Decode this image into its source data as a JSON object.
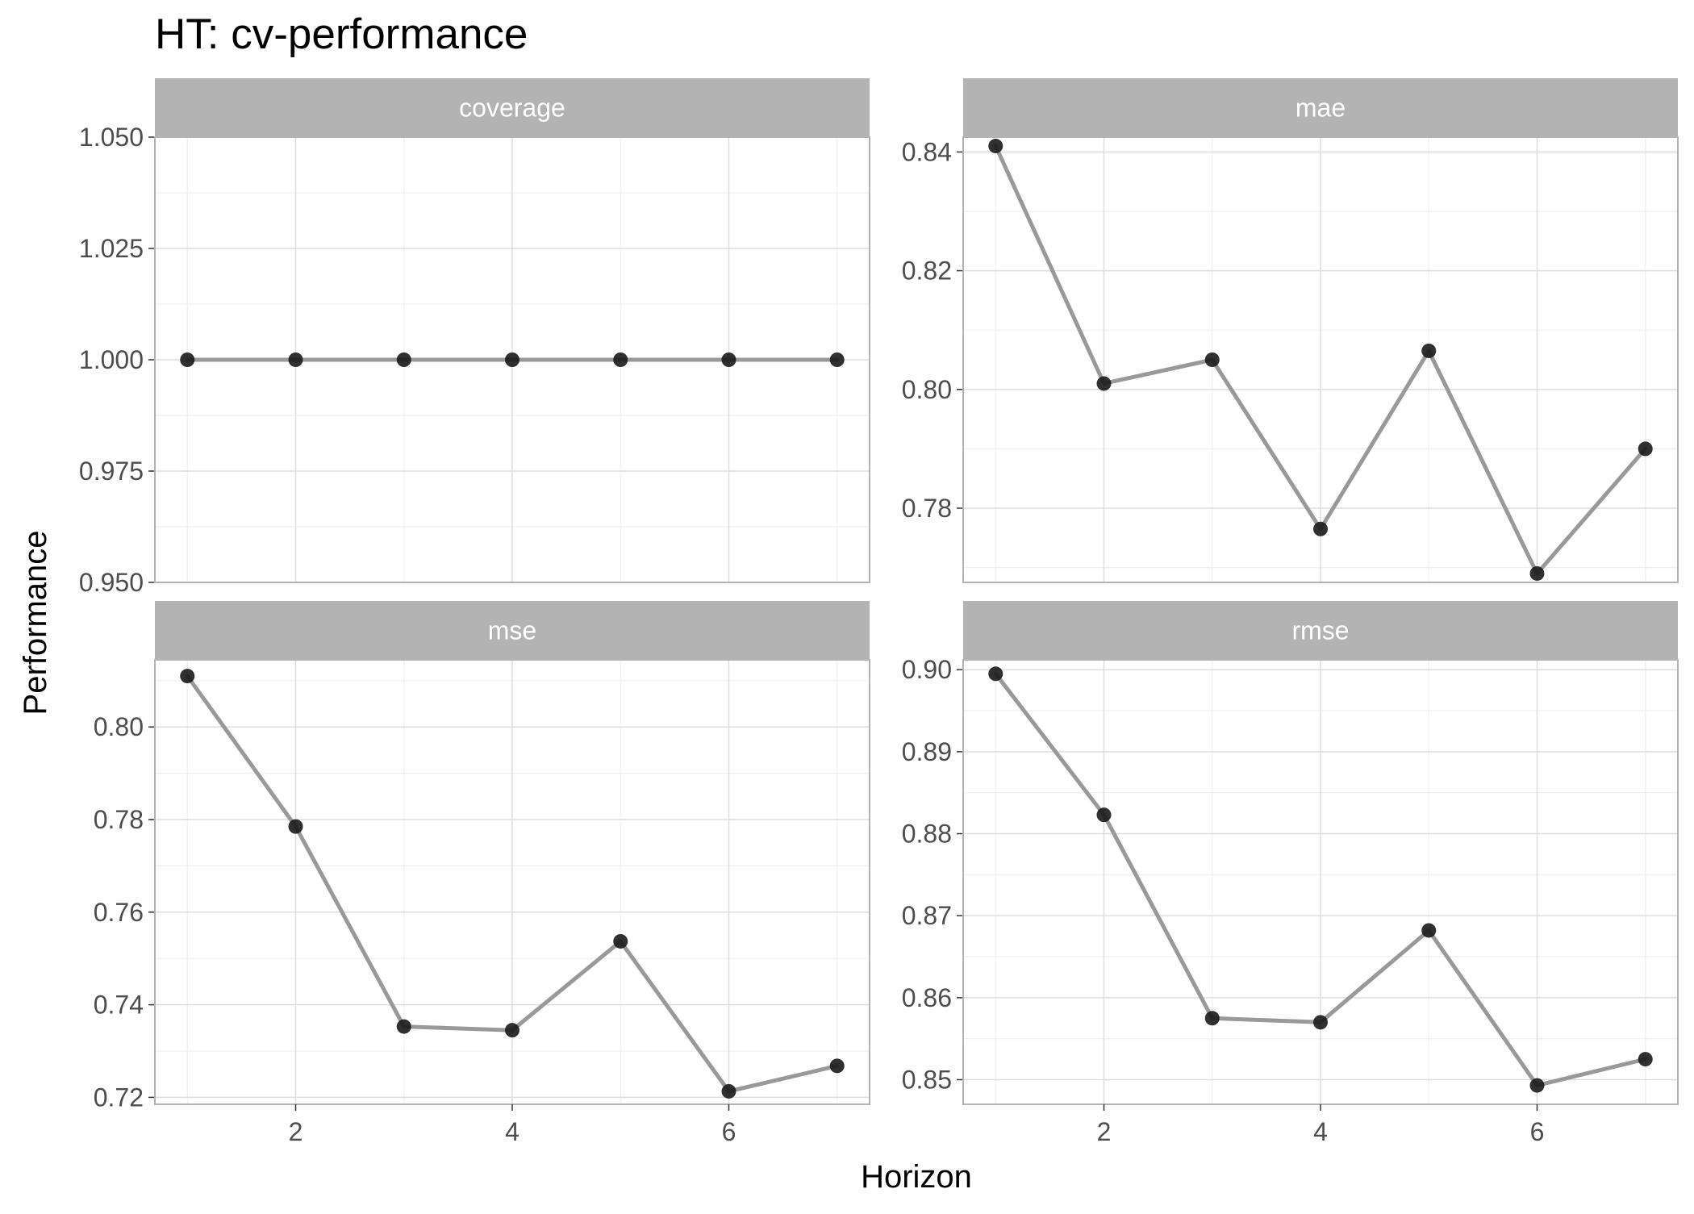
{
  "chart_data": {
    "type": "line",
    "title": "HT: cv-performance",
    "xlabel": "Horizon",
    "ylabel": "Performance",
    "x": [
      1,
      2,
      3,
      4,
      5,
      6,
      7
    ],
    "xlim": [
      0.7,
      7.3
    ],
    "x_ticks": [
      2,
      4,
      6
    ],
    "grid": true,
    "facets": [
      {
        "name": "coverage",
        "values": [
          1.0,
          1.0,
          1.0,
          1.0,
          1.0,
          1.0,
          1.0
        ],
        "ylim": [
          0.95,
          1.05
        ],
        "y_ticks": [
          0.95,
          0.975,
          1.0,
          1.025,
          1.05
        ],
        "y_tick_labels": [
          "0.950",
          "0.975",
          "1.000",
          "1.025",
          "1.050"
        ]
      },
      {
        "name": "mae",
        "values": [
          0.841,
          0.801,
          0.805,
          0.7765,
          0.8065,
          0.769,
          0.79
        ],
        "ylim": [
          0.7675,
          0.8425
        ],
        "y_ticks": [
          0.78,
          0.8,
          0.82,
          0.84
        ],
        "y_tick_labels": [
          "0.78",
          "0.80",
          "0.82",
          "0.84"
        ]
      },
      {
        "name": "mse",
        "values": [
          0.811,
          0.7785,
          0.7353,
          0.7345,
          0.7537,
          0.7213,
          0.7268
        ],
        "ylim": [
          0.7185,
          0.8145
        ],
        "y_ticks": [
          0.72,
          0.74,
          0.76,
          0.78,
          0.8
        ],
        "y_tick_labels": [
          "0.72",
          "0.74",
          "0.76",
          "0.78",
          "0.80"
        ]
      },
      {
        "name": "rmse",
        "values": [
          0.8995,
          0.8823,
          0.8575,
          0.857,
          0.8682,
          0.8493,
          0.8525
        ],
        "ylim": [
          0.847,
          0.9012
        ],
        "y_ticks": [
          0.85,
          0.86,
          0.87,
          0.88,
          0.89,
          0.9
        ],
        "y_tick_labels": [
          "0.85",
          "0.86",
          "0.87",
          "0.88",
          "0.89",
          "0.90"
        ]
      }
    ],
    "colors": {
      "line": "#999999",
      "point": "#1a1a1a",
      "strip": "#b3b3b3",
      "strip_text": "#ffffff",
      "panel_border": "#b3b3b3",
      "grid_major": "#dedede",
      "grid_minor": "#efefef",
      "tick_text": "#4d4d4d"
    }
  }
}
